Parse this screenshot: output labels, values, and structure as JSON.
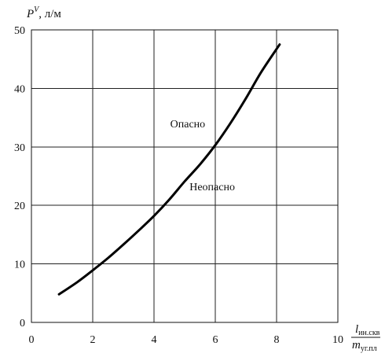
{
  "chart_data": {
    "type": "line",
    "ylabel": {
      "main": "P",
      "sup": "V",
      "unit": ", л/м"
    },
    "xlabel": {
      "numerator": "l",
      "numerator_sub": "ин.скв",
      "denominator": "m",
      "denominator_sub": "уг.пл"
    },
    "xlim": [
      0,
      10
    ],
    "ylim": [
      0,
      50
    ],
    "x_ticks": [
      0,
      2,
      4,
      6,
      8,
      10
    ],
    "y_ticks": [
      0,
      10,
      20,
      30,
      40,
      50
    ],
    "grid": true,
    "series": [
      {
        "x": [
          0.9,
          1.5,
          2.0,
          2.5,
          3.0,
          3.5,
          4.0,
          4.5,
          5.0,
          5.5,
          6.0,
          6.5,
          7.0,
          7.5,
          8.1
        ],
        "y": [
          4.8,
          6.9,
          8.9,
          11.0,
          13.3,
          15.7,
          18.2,
          21.0,
          24.1,
          27.0,
          30.3,
          34.1,
          38.3,
          42.8,
          47.5
        ]
      }
    ],
    "annotations": [
      {
        "text": "Опасно",
        "x": 5.1,
        "y": 33.3
      },
      {
        "text": "Неопасно",
        "x": 5.9,
        "y": 22.6
      }
    ]
  }
}
